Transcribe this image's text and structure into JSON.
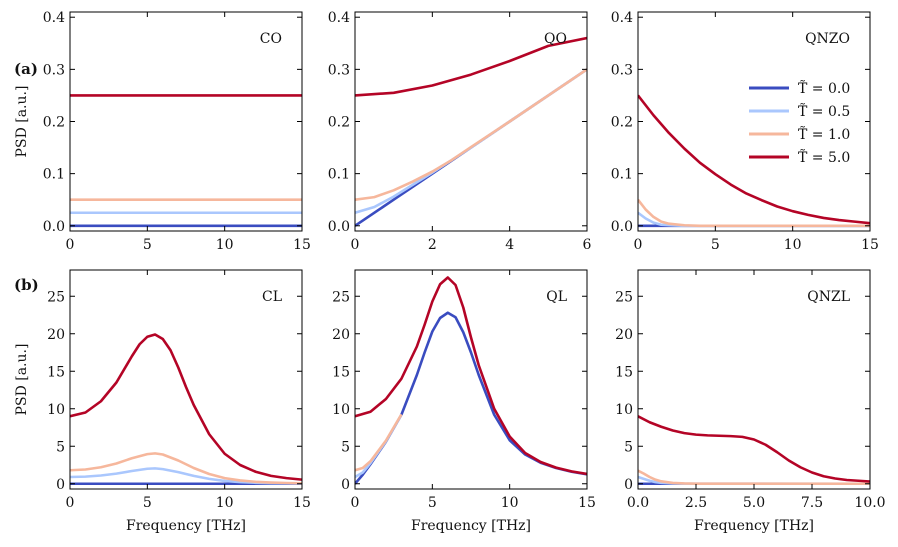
{
  "legend": {
    "entries": [
      "T̃ = 0.0",
      "T̃ = 0.5",
      "T̃ = 1.0",
      "T̃ = 5.0"
    ],
    "colors": [
      "#3a4cc0",
      "#aac7fd",
      "#f6b79c",
      "#b40426"
    ],
    "placement": "right, panel QNZO"
  },
  "row_labels": [
    "(a)",
    "(b)"
  ],
  "chart_data": [
    {
      "type": "line",
      "title": "CO",
      "row": 0,
      "col": 0,
      "xlabel": "",
      "ylabel": "PSD [a.u.]",
      "xlim": [
        0,
        15
      ],
      "ylim": [
        -0.01,
        0.41
      ],
      "xticks": [
        0,
        5,
        10,
        15
      ],
      "xtick_labels": [
        "0",
        "5",
        "10",
        "15"
      ],
      "yticks": [
        0,
        0.1,
        0.2,
        0.3,
        0.4
      ],
      "ytick_labels": [
        "0.0",
        "0.1",
        "0.2",
        "0.3",
        "0.4"
      ],
      "series": [
        {
          "name": "T̃ = 0.0",
          "x": [
            0,
            15
          ],
          "y": [
            0.0,
            0.0
          ]
        },
        {
          "name": "T̃ = 0.5",
          "x": [
            0,
            15
          ],
          "y": [
            0.025,
            0.025
          ]
        },
        {
          "name": "T̃ = 1.0",
          "x": [
            0,
            15
          ],
          "y": [
            0.05,
            0.05
          ]
        },
        {
          "name": "T̃ = 5.0",
          "x": [
            0,
            15
          ],
          "y": [
            0.25,
            0.25
          ]
        }
      ]
    },
    {
      "type": "line",
      "title": "QO",
      "row": 0,
      "col": 1,
      "xlabel": "",
      "ylabel": "",
      "xlim": [
        0,
        6
      ],
      "ylim": [
        -0.01,
        0.41
      ],
      "xticks": [
        0,
        2,
        4,
        6
      ],
      "xtick_labels": [
        "0",
        "2",
        "4",
        "6"
      ],
      "yticks": [
        0,
        0.1,
        0.2,
        0.3,
        0.4
      ],
      "ytick_labels": [
        "0.0",
        "0.1",
        "0.2",
        "0.3",
        "0.4"
      ],
      "series": [
        {
          "name": "T̃ = 0.0",
          "x": [
            0,
            1,
            2,
            3,
            4,
            5,
            6
          ],
          "y": [
            0.0,
            0.05,
            0.1,
            0.15,
            0.2,
            0.25,
            0.3
          ]
        },
        {
          "name": "T̃ = 0.5",
          "x": [
            0,
            0.5,
            1,
            1.5,
            2,
            3,
            4,
            5,
            6
          ],
          "y": [
            0.025,
            0.036,
            0.056,
            0.079,
            0.102,
            0.15,
            0.2,
            0.25,
            0.3
          ]
        },
        {
          "name": "T̃ = 1.0",
          "x": [
            0,
            0.5,
            1,
            1.5,
            2,
            2.5,
            3,
            4,
            5,
            6
          ],
          "y": [
            0.05,
            0.055,
            0.068,
            0.085,
            0.104,
            0.126,
            0.151,
            0.2,
            0.25,
            0.3
          ]
        },
        {
          "name": "T̃ = 5.0",
          "x": [
            0,
            1,
            2,
            3,
            4,
            5,
            6
          ],
          "y": [
            0.25,
            0.255,
            0.269,
            0.29,
            0.316,
            0.345,
            0.36
          ]
        }
      ]
    },
    {
      "type": "line",
      "title": "QNZO",
      "row": 0,
      "col": 2,
      "xlabel": "",
      "ylabel": "",
      "xlim": [
        0,
        15
      ],
      "ylim": [
        -0.01,
        0.41
      ],
      "xticks": [
        0,
        5,
        10,
        15
      ],
      "xtick_labels": [
        "0",
        "5",
        "10",
        "15"
      ],
      "yticks": [
        0,
        0.1,
        0.2,
        0.3,
        0.4
      ],
      "ytick_labels": [
        "0.0",
        "0.1",
        "0.2",
        "0.3",
        "0.4"
      ],
      "series": [
        {
          "name": "T̃ = 0.0",
          "x": [
            0,
            15
          ],
          "y": [
            0.0,
            0.0
          ]
        },
        {
          "name": "T̃ = 0.5",
          "x": [
            0,
            0.5,
            1,
            1.5,
            2,
            3,
            15
          ],
          "y": [
            0.025,
            0.014,
            0.006,
            0.002,
            0.001,
            0.0,
            0.0
          ]
        },
        {
          "name": "T̃ = 1.0",
          "x": [
            0,
            0.5,
            1,
            1.5,
            2,
            3,
            4,
            15
          ],
          "y": [
            0.05,
            0.031,
            0.017,
            0.008,
            0.004,
            0.001,
            0.0,
            0.0
          ]
        },
        {
          "name": "T̃ = 5.0",
          "x": [
            0,
            1,
            2,
            3,
            4,
            5,
            6,
            7,
            8,
            9,
            10,
            11,
            12,
            13,
            14,
            15
          ],
          "y": [
            0.25,
            0.212,
            0.178,
            0.148,
            0.121,
            0.099,
            0.079,
            0.062,
            0.049,
            0.037,
            0.028,
            0.021,
            0.015,
            0.011,
            0.008,
            0.005
          ]
        }
      ]
    },
    {
      "type": "line",
      "title": "CL",
      "row": 1,
      "col": 0,
      "xlabel": "Frequency [THz]",
      "ylabel": "PSD [a.u.]",
      "xlim": [
        0,
        15
      ],
      "ylim": [
        -0.7,
        28.5
      ],
      "xticks": [
        0,
        5,
        10,
        15
      ],
      "xtick_labels": [
        "0",
        "5",
        "10",
        "15"
      ],
      "yticks": [
        0,
        5,
        10,
        15,
        20,
        25
      ],
      "ytick_labels": [
        "0",
        "5",
        "10",
        "15",
        "20",
        "25"
      ],
      "series": [
        {
          "name": "T̃ = 0.0",
          "x": [
            0,
            15
          ],
          "y": [
            0.0,
            0.0
          ]
        },
        {
          "name": "T̃ = 0.5",
          "x": [
            0,
            1,
            2,
            3,
            4,
            5,
            5.5,
            6,
            7,
            8,
            9,
            10,
            11,
            12,
            13,
            14,
            15
          ],
          "y": [
            0.9,
            0.95,
            1.1,
            1.35,
            1.7,
            2.0,
            2.05,
            1.95,
            1.55,
            1.05,
            0.65,
            0.38,
            0.22,
            0.13,
            0.08,
            0.05,
            0.03
          ]
        },
        {
          "name": "T̃ = 1.0",
          "x": [
            0,
            1,
            2,
            3,
            4,
            5,
            5.5,
            6,
            7,
            8,
            9,
            10,
            11,
            12,
            13,
            14,
            15
          ],
          "y": [
            1.8,
            1.9,
            2.2,
            2.7,
            3.4,
            3.95,
            4.05,
            3.9,
            3.1,
            2.1,
            1.3,
            0.75,
            0.44,
            0.26,
            0.16,
            0.1,
            0.06
          ]
        },
        {
          "name": "T̃ = 5.0",
          "x": [
            0,
            1,
            2,
            3,
            4,
            4.5,
            5,
            5.5,
            6,
            6.5,
            7,
            7.5,
            8,
            9,
            10,
            11,
            12,
            13,
            14,
            15
          ],
          "y": [
            9.0,
            9.5,
            11.0,
            13.5,
            17.0,
            18.6,
            19.6,
            19.9,
            19.3,
            17.8,
            15.5,
            12.9,
            10.5,
            6.6,
            4.0,
            2.5,
            1.6,
            1.05,
            0.75,
            0.55
          ]
        }
      ]
    },
    {
      "type": "line",
      "title": "QL",
      "row": 1,
      "col": 1,
      "xlabel": "Frequency [THz]",
      "ylabel": "",
      "xlim": [
        0,
        15
      ],
      "ylim": [
        -0.7,
        28.5
      ],
      "xticks": [
        0,
        5,
        10,
        15
      ],
      "xtick_labels": [
        "0",
        "5",
        "10",
        "15"
      ],
      "yticks": [
        0,
        5,
        10,
        15,
        20,
        25
      ],
      "ytick_labels": [
        "0",
        "5",
        "10",
        "15",
        "20",
        "25"
      ],
      "series": [
        {
          "name": "T̃ = 0.0",
          "x": [
            0,
            0.5,
            1,
            2,
            3,
            4,
            4.5,
            5,
            5.5,
            6,
            6.5,
            7,
            7.5,
            8,
            9,
            10,
            11,
            12,
            13,
            14,
            15
          ],
          "y": [
            0.0,
            1.2,
            2.6,
            5.6,
            9.2,
            14.5,
            17.5,
            20.3,
            22.1,
            22.8,
            22.2,
            20.2,
            17.5,
            14.5,
            9.2,
            5.8,
            3.9,
            2.8,
            2.1,
            1.6,
            1.25
          ]
        },
        {
          "name": "T̃ = 0.5",
          "x": [
            0,
            0.5,
            1,
            2,
            3
          ],
          "y": [
            0.9,
            1.5,
            2.75,
            5.65,
            9.22
          ]
        },
        {
          "name": "T̃ = 1.0",
          "x": [
            0,
            0.5,
            1,
            2,
            3
          ],
          "y": [
            1.8,
            2.1,
            3.0,
            5.75,
            9.25
          ]
        },
        {
          "name": "T̃ = 5.0",
          "x": [
            0,
            1,
            2,
            3,
            4,
            4.5,
            5,
            5.5,
            6,
            6.5,
            7,
            7.5,
            8,
            9,
            10,
            11,
            12,
            13,
            14,
            15
          ],
          "y": [
            9.0,
            9.6,
            11.3,
            14.0,
            18.3,
            21.2,
            24.3,
            26.6,
            27.5,
            26.5,
            23.5,
            19.5,
            15.8,
            10.0,
            6.3,
            4.1,
            2.9,
            2.15,
            1.65,
            1.3
          ]
        }
      ]
    },
    {
      "type": "line",
      "title": "QNZL",
      "row": 1,
      "col": 2,
      "xlabel": "Frequency [THz]",
      "ylabel": "",
      "xlim": [
        0,
        10
      ],
      "ylim": [
        -0.7,
        28.5
      ],
      "xticks": [
        0,
        2.5,
        5,
        7.5,
        10
      ],
      "xtick_labels": [
        "0.0",
        "2.5",
        "5.0",
        "7.5",
        "10.0"
      ],
      "yticks": [
        0,
        5,
        10,
        15,
        20,
        25
      ],
      "ytick_labels": [
        "0",
        "5",
        "10",
        "15",
        "20",
        "25"
      ],
      "series": [
        {
          "name": "T̃ = 0.0",
          "x": [
            0,
            10
          ],
          "y": [
            0.0,
            0.0
          ]
        },
        {
          "name": "T̃ = 0.5",
          "x": [
            0,
            0.25,
            0.5,
            0.75,
            1,
            1.5,
            2,
            10
          ],
          "y": [
            0.9,
            0.65,
            0.4,
            0.22,
            0.12,
            0.04,
            0.01,
            0.0
          ]
        },
        {
          "name": "T̃ = 1.0",
          "x": [
            0,
            0.25,
            0.5,
            0.75,
            1,
            1.5,
            2,
            2.5,
            10
          ],
          "y": [
            1.75,
            1.35,
            0.9,
            0.55,
            0.32,
            0.11,
            0.04,
            0.01,
            0.0
          ]
        },
        {
          "name": "T̃ = 5.0",
          "x": [
            0,
            0.5,
            1,
            1.5,
            2,
            2.5,
            3,
            3.5,
            4,
            4.5,
            5,
            5.5,
            6,
            6.5,
            7,
            7.5,
            8,
            8.5,
            9,
            9.5,
            10
          ],
          "y": [
            9.0,
            8.2,
            7.6,
            7.1,
            6.75,
            6.55,
            6.45,
            6.4,
            6.35,
            6.25,
            5.9,
            5.2,
            4.2,
            3.1,
            2.2,
            1.5,
            1.0,
            0.7,
            0.5,
            0.4,
            0.3
          ]
        }
      ]
    }
  ]
}
